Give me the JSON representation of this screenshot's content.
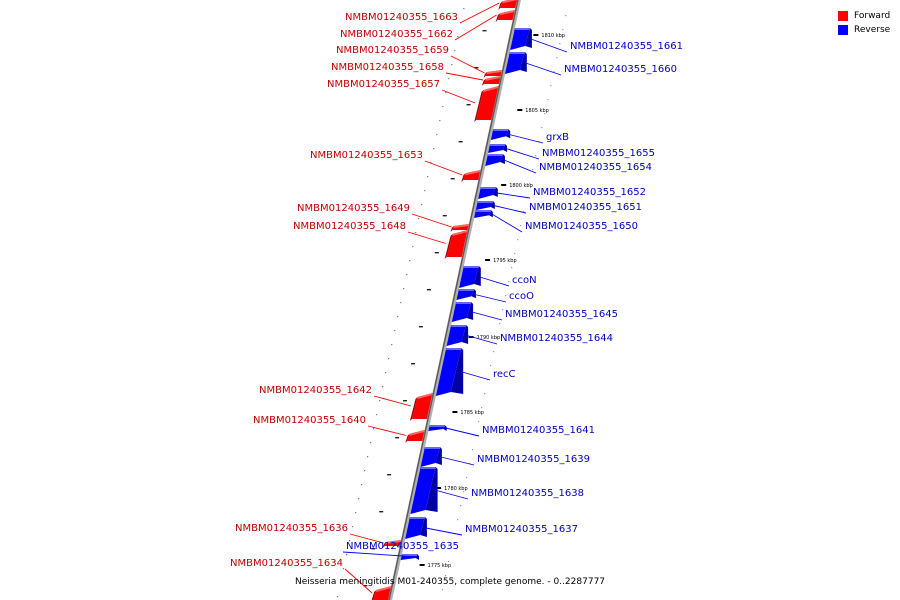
{
  "legend": {
    "forward_label": "Forward",
    "reverse_label": "Reverse",
    "forward_color": "#ff0000",
    "reverse_color": "#0000ff"
  },
  "caption": "Neisseria meningitidis M01-240355, complete genome. - 0..2287777",
  "colors": {
    "forward": "#ff0000",
    "reverse": "#0000ff",
    "axis": "#9a9a9a"
  },
  "ticks": [
    {
      "label": "1810 kbp",
      "kbp": 1810
    },
    {
      "label": "1805 kbp",
      "kbp": 1805
    },
    {
      "label": "1800 kbp",
      "kbp": 1800
    },
    {
      "label": "1795 kbp",
      "kbp": 1795
    },
    {
      "label": "1790 kbp",
      "kbp": 1790
    },
    {
      "label": "1785 kbp",
      "kbp": 1785
    },
    {
      "label": "1780 kbp",
      "kbp": 1780
    },
    {
      "label": "1775 kbp",
      "kbp": 1775
    }
  ],
  "features": [
    {
      "name": "NMBM01240355_1663",
      "strand": "forward"
    },
    {
      "name": "NMBM01240355_1662",
      "strand": "forward"
    },
    {
      "name": "NMBM01240355_1659",
      "strand": "forward"
    },
    {
      "name": "NMBM01240355_1658",
      "strand": "forward"
    },
    {
      "name": "NMBM01240355_1657",
      "strand": "forward"
    },
    {
      "name": "NMBM01240355_1653",
      "strand": "forward"
    },
    {
      "name": "NMBM01240355_1649",
      "strand": "forward"
    },
    {
      "name": "NMBM01240355_1648",
      "strand": "forward"
    },
    {
      "name": "NMBM01240355_1642",
      "strand": "forward"
    },
    {
      "name": "NMBM01240355_1640",
      "strand": "forward"
    },
    {
      "name": "NMBM01240355_1636",
      "strand": "forward"
    },
    {
      "name": "NMBM01240355_1635",
      "strand": "reverse"
    },
    {
      "name": "NMBM01240355_1634",
      "strand": "forward"
    },
    {
      "name": "NMBM01240355_1661",
      "strand": "reverse"
    },
    {
      "name": "NMBM01240355_1660",
      "strand": "reverse"
    },
    {
      "name": "grxB",
      "strand": "reverse"
    },
    {
      "name": "NMBM01240355_1655",
      "strand": "reverse"
    },
    {
      "name": "NMBM01240355_1654",
      "strand": "reverse"
    },
    {
      "name": "NMBM01240355_1652",
      "strand": "reverse"
    },
    {
      "name": "NMBM01240355_1651",
      "strand": "reverse"
    },
    {
      "name": "NMBM01240355_1650",
      "strand": "reverse"
    },
    {
      "name": "ccoN",
      "strand": "reverse"
    },
    {
      "name": "ccoO",
      "strand": "reverse"
    },
    {
      "name": "NMBM01240355_1645",
      "strand": "reverse"
    },
    {
      "name": "NMBM01240355_1644",
      "strand": "reverse"
    },
    {
      "name": "recC",
      "strand": "reverse"
    },
    {
      "name": "NMBM01240355_1641",
      "strand": "reverse"
    },
    {
      "name": "NMBM01240355_1639",
      "strand": "reverse"
    },
    {
      "name": "NMBM01240355_1638",
      "strand": "reverse"
    },
    {
      "name": "NMBM01240355_1637",
      "strand": "reverse"
    }
  ]
}
